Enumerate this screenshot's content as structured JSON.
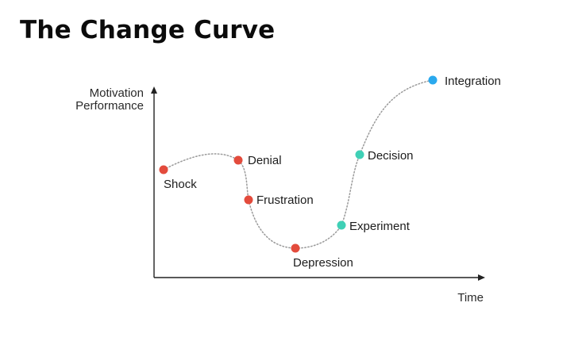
{
  "title": "The Change Curve",
  "y_axis_label_line1": "Motivation",
  "y_axis_label_line2": "Performance",
  "x_axis_label": "Time",
  "colors": {
    "red_stage": "#e34b3c",
    "teal_stage": "#3fd0b6",
    "blue_stage": "#2aa9ee",
    "axis": "#222222",
    "curve": "#9a9a9a"
  },
  "stages": [
    {
      "name": "Shock",
      "color_key": "red_stage"
    },
    {
      "name": "Denial",
      "color_key": "red_stage"
    },
    {
      "name": "Frustration",
      "color_key": "red_stage"
    },
    {
      "name": "Depression",
      "color_key": "red_stage"
    },
    {
      "name": "Experiment",
      "color_key": "teal_stage"
    },
    {
      "name": "Decision",
      "color_key": "teal_stage"
    },
    {
      "name": "Integration",
      "color_key": "blue_stage"
    }
  ]
}
